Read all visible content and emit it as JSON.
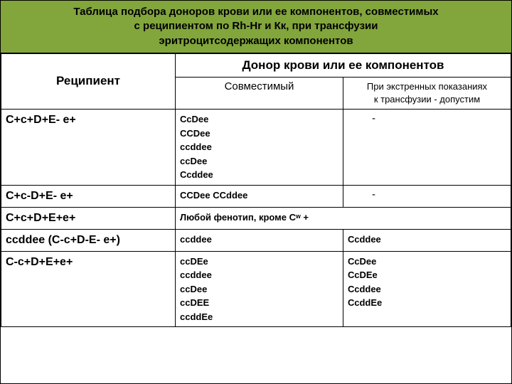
{
  "title_lines": [
    "Таблица подбора доноров крови или ее компонентов, совместимых",
    "с реципиентом  по Rh-Hr и Кк, при трансфузии",
    "эритроцитсодержащих       компонентов"
  ],
  "headers": {
    "recipient": "Реципиент",
    "donor": "Донор крови  или ее компонентов",
    "compatible": "Совместимый",
    "emergency_l1": "При экстренных показаниях",
    "emergency_l2": "к трансфузии  -  допустим"
  },
  "rows": [
    {
      "recipient": "С+с+D+E- e+",
      "compatible": "СсDee\nССDee\nссddee\nссDee\nСсddee",
      "emergency": "-",
      "emergency_class": "dash-cell"
    },
    {
      "recipient": "С+с-D+E- e+",
      "compatible": "ССDee        ССddee",
      "emergency": "-",
      "emergency_class": "dash-cell"
    },
    {
      "recipient": "С+с+D+E+e+",
      "compatible_span": "Любой фенотип, кроме  Сʷ +",
      "colspan": 2
    },
    {
      "recipient": "ссddee    (С-с+D-E- e+)",
      "compatible": "ссddee",
      "emergency": "Ссddee"
    },
    {
      "recipient": "С-с+D+E+e+",
      "compatible": "ссDEe\nссddee\nссDee\nссDEE\nссddEe\n ",
      "emergency": "СсDee\nСсDEe\nСсddee\nСсddEe"
    }
  ]
}
